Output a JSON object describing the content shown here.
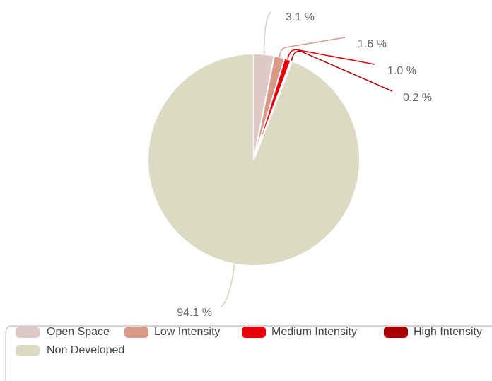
{
  "chart_data": {
    "type": "pie",
    "categories": [
      "Open Space",
      "Low Intensity",
      "Medium Intensity",
      "High Intensity",
      "Non Developed"
    ],
    "values": [
      3.1,
      1.6,
      1.0,
      0.2,
      94.1
    ],
    "labels": [
      "3.1 %",
      "1.6 %",
      "1.0 %",
      "0.2 %",
      "94.1 %"
    ],
    "colors": [
      "#dfc8c8",
      "#d99a87",
      "#e8000b",
      "#a80000",
      "#dddac4"
    ],
    "unit": "%",
    "legend": "bottom"
  }
}
